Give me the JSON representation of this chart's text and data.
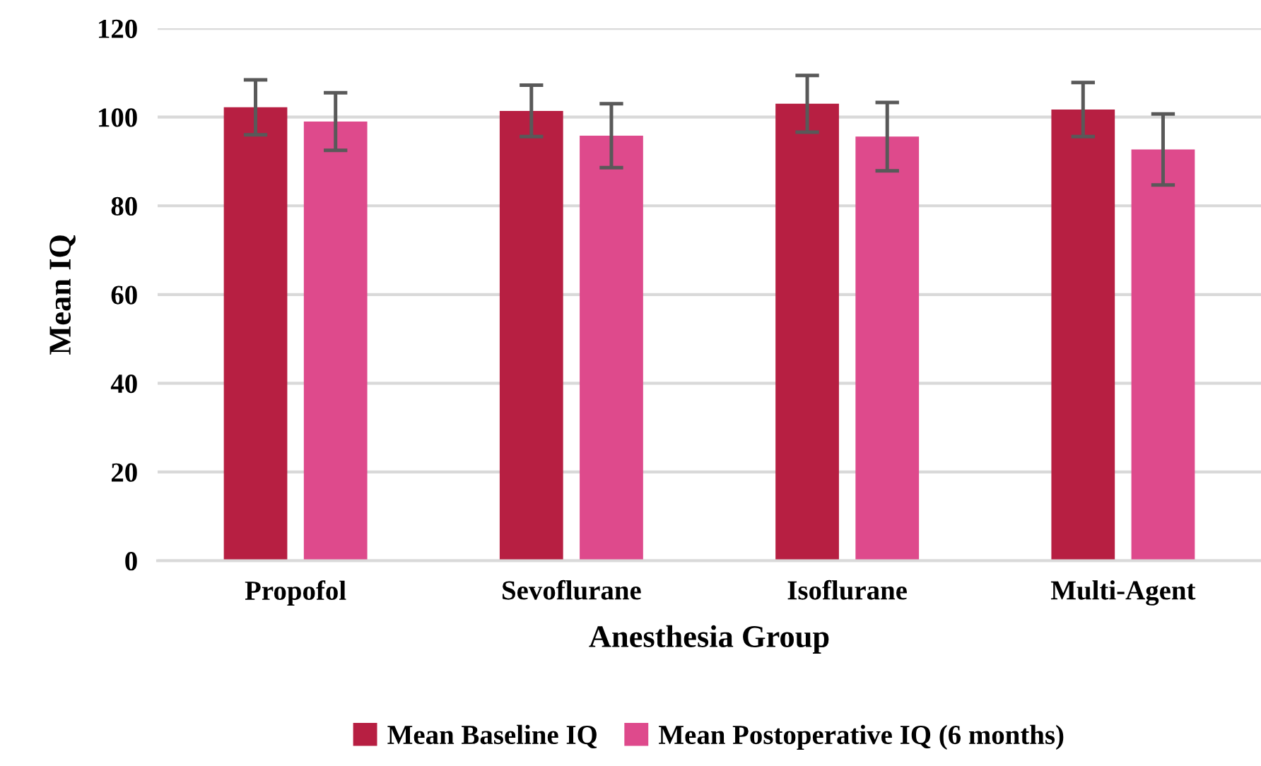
{
  "chart_data": {
    "type": "bar",
    "xlabel": "Anesthesia Group",
    "ylabel": "Mean IQ",
    "categories": [
      "Propofol",
      "Sevoflurane",
      "Isoflurane",
      "Multi-Agent"
    ],
    "series": [
      {
        "name": "Mean Baseline IQ",
        "color": "#b71f42",
        "values": [
          102.2,
          101.4,
          103.0,
          101.7
        ],
        "errors": [
          6.2,
          5.8,
          6.4,
          6.1
        ]
      },
      {
        "name": "Mean Postoperative IQ (6 months)",
        "color": "#de4a8c",
        "values": [
          99.0,
          95.8,
          95.6,
          92.7
        ],
        "errors": [
          6.5,
          7.2,
          7.7,
          8.0
        ]
      }
    ],
    "ylim": [
      0,
      120
    ],
    "yticks": [
      0,
      20,
      40,
      60,
      80,
      100,
      120
    ],
    "grid": "y",
    "legend": "bottom"
  }
}
